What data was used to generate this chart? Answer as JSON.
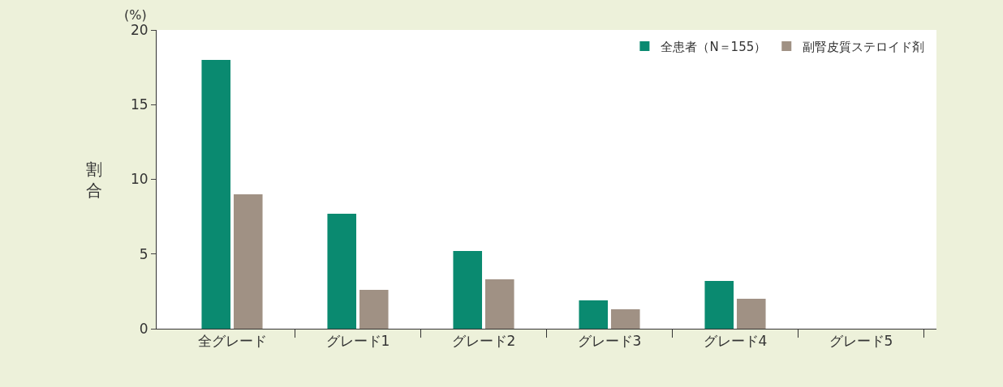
{
  "chart_data": {
    "type": "bar",
    "ylabel": "割合",
    "annotations": [
      "(%)"
    ],
    "categories": [
      "全グレード",
      "グレード1",
      "グレード2",
      "グレード3",
      "グレード4",
      "グレード5"
    ],
    "series": [
      {
        "name": "全患者（N＝155）",
        "color": "#0a8a70",
        "values": [
          18,
          7.7,
          5.2,
          1.9,
          3.2,
          0
        ]
      },
      {
        "name": "副腎皮質ステロイド剤",
        "color": "#a09184",
        "values": [
          9,
          2.6,
          3.3,
          1.3,
          2,
          0
        ]
      }
    ],
    "ylim": [
      0,
      20
    ],
    "yticks": [
      0,
      5,
      10,
      15,
      20
    ],
    "grid": false,
    "legend": "top right"
  }
}
